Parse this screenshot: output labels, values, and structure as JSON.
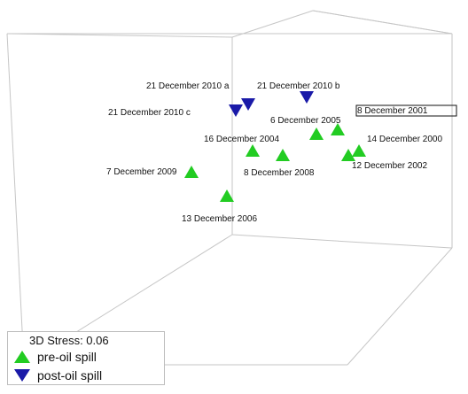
{
  "chart_data": {
    "type": "scatter",
    "projection": "3d",
    "stress_label": "3D Stress: 0.06",
    "series": [
      {
        "name": "pre-oil spill",
        "marker": "triangle-up",
        "color": "#22cc22",
        "points": [
          {
            "label": "8 December 2001"
          },
          {
            "label": "14 December 2000"
          },
          {
            "label": "12 December 2002"
          },
          {
            "label": "6 December 2005"
          },
          {
            "label": "16 December 2004"
          },
          {
            "label": "8 December 2008"
          },
          {
            "label": "7 December 2009"
          },
          {
            "label": "13 December 2006"
          }
        ]
      },
      {
        "name": "post-oil spill",
        "marker": "triangle-down",
        "color": "#1a1aa8",
        "points": [
          {
            "label": "21 December 2010 a"
          },
          {
            "label": "21 December 2010 b"
          },
          {
            "label": "21 December 2010 c"
          }
        ]
      }
    ]
  }
}
